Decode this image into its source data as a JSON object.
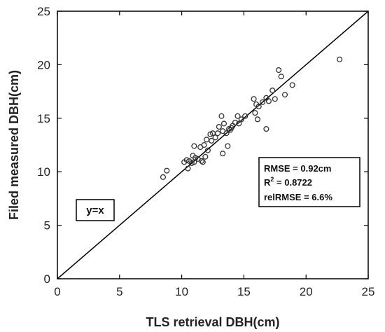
{
  "chart_data": {
    "type": "scatter",
    "xlabel": "TLS retrieval DBH(cm)",
    "ylabel": "Filed measured DBH(cm)",
    "xlim": [
      0,
      25
    ],
    "ylim": [
      0,
      25
    ],
    "xticks": [
      "0",
      "5",
      "10",
      "15",
      "20",
      "25"
    ],
    "yticks": [
      "0",
      "5",
      "10",
      "15",
      "20",
      "25"
    ],
    "grid": false,
    "reference_line": {
      "label": "y=x",
      "slope": 1,
      "intercept": 0
    },
    "stats": {
      "rmse": "RMSE = 0.92cm",
      "r2_label": "R",
      "r2_sup": "2",
      "r2_value": " = 0.8722",
      "relrmse": "relRMSE = 6.6%"
    },
    "marker": "open-circle",
    "marker_color": "#333333",
    "series": [
      {
        "x": [
          8.5,
          8.8,
          10.2,
          10.4,
          10.5,
          10.6,
          10.8,
          10.9,
          11.0,
          11.0,
          11.1,
          11.3,
          11.5,
          11.6,
          11.7,
          11.8,
          11.9,
          12.0,
          12.1,
          12.3,
          12.4,
          12.5,
          12.7,
          12.9,
          13.0,
          13.2,
          13.3,
          13.3,
          13.4,
          13.6,
          13.7,
          13.8,
          13.9,
          14.0,
          14.1,
          14.3,
          14.5,
          14.6,
          14.8,
          15.1,
          15.8,
          15.9,
          16.0,
          16.1,
          16.2,
          16.5,
          16.8,
          16.8,
          17.0,
          17.3,
          17.5,
          17.8,
          18.0,
          18.3,
          18.9,
          22.7
        ],
        "y": [
          9.5,
          10.1,
          10.9,
          11.1,
          10.3,
          11.0,
          10.8,
          11.5,
          10.9,
          12.4,
          11.3,
          11.2,
          12.3,
          11.0,
          10.9,
          12.5,
          11.4,
          13.0,
          12.0,
          13.5,
          12.9,
          13.6,
          13.2,
          13.6,
          14.2,
          15.2,
          11.7,
          13.8,
          14.5,
          13.6,
          12.4,
          14.0,
          13.9,
          14.1,
          14.3,
          14.6,
          15.2,
          14.5,
          14.9,
          15.2,
          16.8,
          15.5,
          16.3,
          14.9,
          16.1,
          16.5,
          16.9,
          14.0,
          16.6,
          17.6,
          16.8,
          19.5,
          18.9,
          17.2,
          18.1,
          20.5
        ]
      }
    ]
  }
}
